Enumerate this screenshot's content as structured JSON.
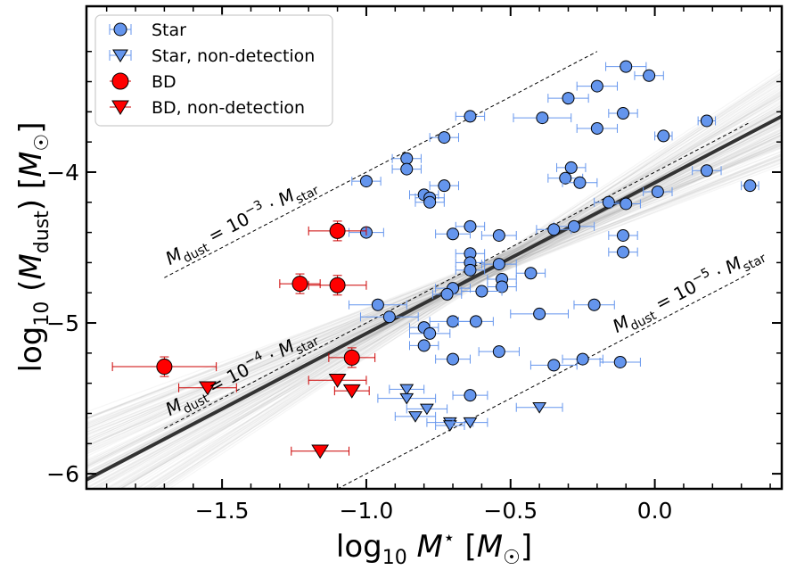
{
  "chart_data": {
    "type": "scatter",
    "xlabel": "log10 M⋆ [M☉]",
    "ylabel": "log10 (Mdust) [M☉]",
    "xlim": [
      -1.97,
      0.44
    ],
    "ylim": [
      -6.1,
      -2.9
    ],
    "x_ticks": [
      -1.5,
      -1.0,
      -0.5,
      0.0
    ],
    "x_tick_labels": [
      "−1.5",
      "−1.0",
      "−0.5",
      "0.0"
    ],
    "y_ticks": [
      -6,
      -5,
      -4
    ],
    "y_tick_labels": [
      "−6",
      "−5",
      "−4"
    ],
    "grid": false,
    "legend_position": "top-left",
    "colors": {
      "star": "#6495ED",
      "bd": "#FF0000",
      "errbar_star": "#6495ED",
      "errbar_bd": "#CC0000",
      "fit": "#333333",
      "bundle": "#9a9a9a"
    },
    "legend": [
      {
        "label": "Star",
        "marker": "circle",
        "color": "#6495ED"
      },
      {
        "label": "Star, non-detection",
        "marker": "triangle-down",
        "color": "#6495ED"
      },
      {
        "label": "BD",
        "marker": "circle",
        "color": "#FF0000"
      },
      {
        "label": "BD, non-detection",
        "marker": "triangle-down",
        "color": "#FF0000"
      }
    ],
    "annotations": [
      {
        "base": "M",
        "sub": "dust",
        "rest": " = 10",
        "exp": "−3",
        "tail": " · M",
        "tail_sub": "star",
        "ratio": -3
      },
      {
        "base": "M",
        "sub": "dust",
        "rest": " = 10",
        "exp": "−4",
        "tail": " · M",
        "tail_sub": "star",
        "ratio": -4
      },
      {
        "base": "M",
        "sub": "dust",
        "rest": " = 10",
        "exp": "−5",
        "tail": " · M",
        "tail_sub": "star",
        "ratio": -5
      }
    ],
    "ratio_lines": [
      {
        "ratio": -3,
        "x": [
          -1.7,
          -0.2
        ]
      },
      {
        "ratio": -4,
        "x": [
          -1.7,
          0.33
        ]
      },
      {
        "ratio": -5,
        "x": [
          -1.1,
          0.33
        ]
      }
    ],
    "fit_line": {
      "slope": 1.0,
      "intercept": -4.07
    },
    "series": [
      {
        "name": "Star",
        "marker": "circle",
        "points": [
          {
            "x": -0.1,
            "y": -3.3,
            "xerr": 0.07
          },
          {
            "x": -0.02,
            "y": -3.36,
            "xerr": 0.05
          },
          {
            "x": -0.2,
            "y": -3.43,
            "xerr": 0.07
          },
          {
            "x": -0.3,
            "y": -3.51,
            "xerr": 0.07
          },
          {
            "x": -0.64,
            "y": -3.63,
            "xerr": 0.05
          },
          {
            "x": -0.39,
            "y": -3.64,
            "xerr": 0.1
          },
          {
            "x": -0.11,
            "y": -3.61,
            "xerr": 0.05
          },
          {
            "x": 0.18,
            "y": -3.66,
            "xerr": 0.03
          },
          {
            "x": -0.2,
            "y": -3.71,
            "xerr": 0.07
          },
          {
            "x": 0.03,
            "y": -3.76,
            "xerr": 0.03
          },
          {
            "x": -0.73,
            "y": -3.77,
            "xerr": 0.05
          },
          {
            "x": -0.86,
            "y": -3.91,
            "xerr": 0.05
          },
          {
            "x": -0.86,
            "y": -3.98,
            "xerr": 0.05
          },
          {
            "x": -0.29,
            "y": -3.97,
            "xerr": 0.05
          },
          {
            "x": 0.18,
            "y": -3.99,
            "xerr": 0.05
          },
          {
            "x": -1.0,
            "y": -4.06,
            "xerr": 0.05
          },
          {
            "x": -0.31,
            "y": -4.04,
            "xerr": 0.06
          },
          {
            "x": -0.26,
            "y": -4.07,
            "xerr": 0.06
          },
          {
            "x": -0.73,
            "y": -4.09,
            "xerr": 0.05
          },
          {
            "x": 0.33,
            "y": -4.09,
            "xerr": 0.03
          },
          {
            "x": -0.8,
            "y": -4.15,
            "xerr": 0.05
          },
          {
            "x": 0.01,
            "y": -4.13,
            "xerr": 0.05
          },
          {
            "x": -0.78,
            "y": -4.17,
            "xerr": 0.05
          },
          {
            "x": -0.78,
            "y": -4.2,
            "xerr": 0.05
          },
          {
            "x": -0.16,
            "y": -4.2,
            "xerr": 0.05
          },
          {
            "x": -0.1,
            "y": -4.21,
            "xerr": 0.05
          },
          {
            "x": -0.64,
            "y": -4.36,
            "xerr": 0.05
          },
          {
            "x": -0.28,
            "y": -4.36,
            "xerr": 0.07
          },
          {
            "x": -0.35,
            "y": -4.38,
            "xerr": 0.06
          },
          {
            "x": -1.0,
            "y": -4.4,
            "xerr": 0.06
          },
          {
            "x": -0.7,
            "y": -4.41,
            "xerr": 0.06
          },
          {
            "x": -0.54,
            "y": -4.42,
            "xerr": 0.06
          },
          {
            "x": -0.11,
            "y": -4.42,
            "xerr": 0.05
          },
          {
            "x": -0.11,
            "y": -4.53,
            "xerr": 0.05
          },
          {
            "x": -0.64,
            "y": -4.54,
            "xerr": 0.05
          },
          {
            "x": -0.64,
            "y": -4.6,
            "xerr": 0.05
          },
          {
            "x": -0.54,
            "y": -4.61,
            "xerr": 0.06
          },
          {
            "x": -0.64,
            "y": -4.65,
            "xerr": 0.05
          },
          {
            "x": -0.43,
            "y": -4.67,
            "xerr": 0.05
          },
          {
            "x": -0.53,
            "y": -4.71,
            "xerr": 0.05
          },
          {
            "x": -0.53,
            "y": -4.76,
            "xerr": 0.05
          },
          {
            "x": -0.7,
            "y": -4.77,
            "xerr": 0.06
          },
          {
            "x": -0.6,
            "y": -4.79,
            "xerr": 0.07
          },
          {
            "x": -0.72,
            "y": -4.81,
            "xerr": 0.05
          },
          {
            "x": -0.96,
            "y": -4.88,
            "xerr": 0.1
          },
          {
            "x": -0.21,
            "y": -4.88,
            "xerr": 0.07
          },
          {
            "x": -0.92,
            "y": -4.96,
            "xerr": 0.1
          },
          {
            "x": -0.4,
            "y": -4.94,
            "xerr": 0.1
          },
          {
            "x": -0.7,
            "y": -4.99,
            "xerr": 0.08
          },
          {
            "x": -0.62,
            "y": -4.99,
            "xerr": 0.06
          },
          {
            "x": -0.8,
            "y": -5.03,
            "xerr": 0.05
          },
          {
            "x": -0.78,
            "y": -5.07,
            "xerr": 0.07
          },
          {
            "x": -0.8,
            "y": -5.15,
            "xerr": 0.05
          },
          {
            "x": -0.54,
            "y": -5.19,
            "xerr": 0.07
          },
          {
            "x": -0.7,
            "y": -5.24,
            "xerr": 0.06
          },
          {
            "x": -0.25,
            "y": -5.24,
            "xerr": 0.07
          },
          {
            "x": -0.12,
            "y": -5.26,
            "xerr": 0.07
          },
          {
            "x": -0.35,
            "y": -5.28,
            "xerr": 0.08
          },
          {
            "x": -0.64,
            "y": -5.48,
            "xerr": 0.06
          }
        ]
      },
      {
        "name": "Star, non-detection",
        "marker": "triangle-down",
        "points": [
          {
            "x": -0.86,
            "y": -5.44,
            "xerr": 0.06
          },
          {
            "x": -0.86,
            "y": -5.5,
            "xerr": 0.1
          },
          {
            "x": -0.79,
            "y": -5.57,
            "xerr": 0.07
          },
          {
            "x": -0.83,
            "y": -5.62,
            "xerr": 0.07
          },
          {
            "x": -0.71,
            "y": -5.66,
            "xerr": 0.08
          },
          {
            "x": -0.71,
            "y": -5.68,
            "xerr": 0.05
          },
          {
            "x": -0.64,
            "y": -5.66,
            "xerr": 0.06
          },
          {
            "x": -0.4,
            "y": -5.56,
            "xerr": 0.08
          }
        ]
      },
      {
        "name": "BD",
        "marker": "circle",
        "points": [
          {
            "x": -1.1,
            "y": -4.39,
            "xerr": 0.1
          },
          {
            "x": -1.23,
            "y": -4.74,
            "xerr": 0.07
          },
          {
            "x": -1.1,
            "y": -4.75,
            "xerr": 0.1
          },
          {
            "x": -1.05,
            "y": -5.23,
            "xerr": 0.08
          },
          {
            "x": -1.7,
            "y": -5.29,
            "xerr": 0.18
          }
        ]
      },
      {
        "name": "BD, non-detection",
        "marker": "triangle-down",
        "points": [
          {
            "x": -1.1,
            "y": -5.38,
            "xerr": 0.1
          },
          {
            "x": -1.05,
            "y": -5.45,
            "xerr": 0.06
          },
          {
            "x": -1.55,
            "y": -5.43,
            "xerr": 0.1
          },
          {
            "x": -1.16,
            "y": -5.85,
            "xerr": 0.1
          }
        ]
      }
    ]
  }
}
